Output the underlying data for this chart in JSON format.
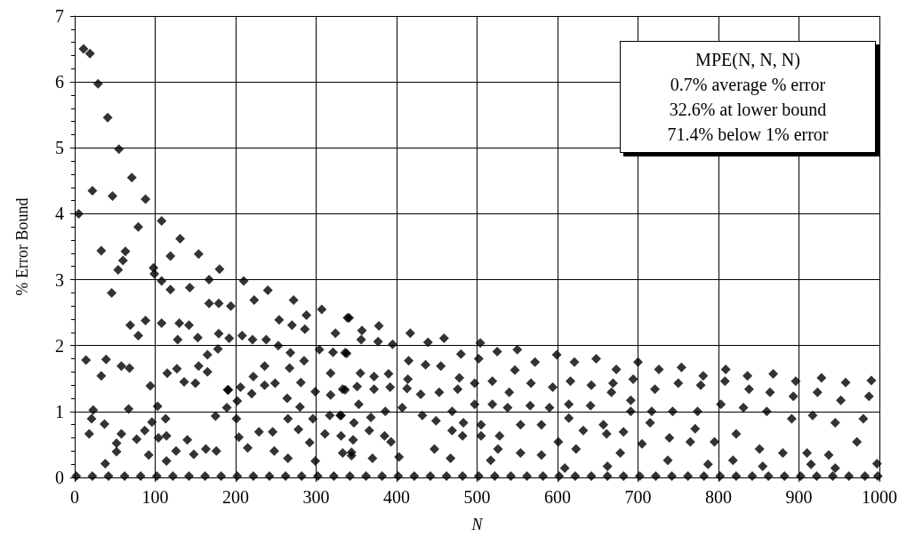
{
  "chart_data": {
    "type": "scatter",
    "xlabel": "N",
    "ylabel": "% Error Bound",
    "annotations": [
      "MPE(N, N, N)",
      "0.7% average % error",
      "32.6% at lower bound",
      "71.4% below 1% error"
    ],
    "x": [
      5,
      11,
      19,
      29,
      41,
      55,
      22,
      47,
      71,
      88,
      79,
      33,
      63,
      60,
      54,
      46,
      108,
      98,
      99,
      108,
      119,
      119,
      131,
      143,
      154,
      167,
      167,
      180,
      179,
      194,
      210,
      223,
      240,
      272,
      288,
      307,
      341,
      69,
      88,
      79,
      108,
      130,
      128,
      142,
      153,
      179,
      192,
      208,
      221,
      238,
      254,
      270,
      286,
      324,
      14,
      39,
      33,
      58,
      68,
      94,
      115,
      127,
      136,
      150,
      154,
      165,
      165,
      178,
      190,
      206,
      220,
      222,
      236,
      236,
      249,
      253,
      268,
      267,
      264,
      285,
      281,
      299,
      304,
      318,
      321,
      318,
      338,
      336,
      23,
      21,
      18,
      37,
      38,
      52,
      52,
      67,
      58,
      77,
      87,
      96,
      92,
      103,
      113,
      114,
      104,
      114,
      126,
      140,
      148,
      163,
      175,
      176,
      189,
      191,
      201,
      202,
      204,
      215,
      229,
      246,
      248,
      265,
      278,
      280,
      296,
      292,
      311,
      317,
      330,
      331,
      344,
      299,
      265,
      339,
      357,
      378,
      356,
      377,
      395,
      417,
      439,
      459,
      504,
      525,
      550,
      599,
      621,
      648,
      673,
      700,
      726,
      754,
      781,
      809,
      836,
      868,
      896,
      928,
      958,
      990,
      336,
      355,
      372,
      390,
      333,
      351,
      372,
      392,
      415,
      414,
      413,
      436,
      430,
      455,
      453,
      480,
      478,
      476,
      502,
      497,
      497,
      519,
      519,
      547,
      540,
      538,
      572,
      567,
      566,
      594,
      590,
      616,
      614,
      614,
      642,
      641,
      667,
      669,
      694,
      691,
      691,
      721,
      717,
      715,
      750,
      743,
      739,
      778,
      774,
      771,
      808,
      803,
      795,
      838,
      831,
      822,
      864,
      860,
      851,
      893,
      891,
      880,
      923,
      917,
      910,
      952,
      945,
      937,
      987,
      980,
      972,
      331,
      347,
      368,
      386,
      353,
      366,
      385,
      346,
      407,
      432,
      449,
      469,
      469,
      483,
      482,
      505,
      505,
      528,
      526,
      554,
      580,
      601,
      623,
      632,
      657,
      661,
      682,
      678,
      705,
      765,
      393,
      447,
      554,
      580,
      997,
      333,
      344,
      370,
      403,
      467,
      517,
      609,
      662,
      737,
      787,
      818,
      855,
      915,
      945,
      2,
      22,
      42,
      62,
      82,
      102,
      122,
      142,
      162,
      182,
      202,
      222,
      242,
      262,
      282,
      302,
      322,
      342,
      362,
      382,
      402,
      422,
      442,
      462,
      482,
      502,
      522,
      542,
      562,
      582,
      602,
      622,
      642,
      662,
      682,
      702,
      722,
      742,
      762,
      782,
      802,
      822,
      842,
      862,
      882,
      902,
      922,
      942,
      962,
      982,
      998
    ],
    "values": [
      4.0,
      6.5,
      6.43,
      5.97,
      5.46,
      4.98,
      4.35,
      4.27,
      4.55,
      4.22,
      3.8,
      3.44,
      3.43,
      3.29,
      3.15,
      2.8,
      3.89,
      3.18,
      3.09,
      2.98,
      3.36,
      2.85,
      3.62,
      2.88,
      3.39,
      3.0,
      2.64,
      3.16,
      2.64,
      2.6,
      2.98,
      2.69,
      2.84,
      2.69,
      2.46,
      2.55,
      2.42,
      2.31,
      2.38,
      2.15,
      2.34,
      2.34,
      2.09,
      2.31,
      2.12,
      2.18,
      2.11,
      2.15,
      2.09,
      2.09,
      2.39,
      2.31,
      2.25,
      2.19,
      1.78,
      1.79,
      1.54,
      1.69,
      1.66,
      1.39,
      1.58,
      1.65,
      1.45,
      1.43,
      1.69,
      1.6,
      1.86,
      1.95,
      1.33,
      1.37,
      1.27,
      1.53,
      1.69,
      1.4,
      1.43,
      2.0,
      1.89,
      1.66,
      1.2,
      1.77,
      1.44,
      1.3,
      1.94,
      1.58,
      1.9,
      1.25,
      1.88,
      1.33,
      1.02,
      0.89,
      0.66,
      0.81,
      0.21,
      0.52,
      0.39,
      1.04,
      0.66,
      0.58,
      0.71,
      0.84,
      0.34,
      1.08,
      0.89,
      0.63,
      0.6,
      0.25,
      0.4,
      0.57,
      0.35,
      0.43,
      0.93,
      0.4,
      1.06,
      1.33,
      0.89,
      1.16,
      0.61,
      0.45,
      0.69,
      0.69,
      0.4,
      0.89,
      0.73,
      1.07,
      0.89,
      0.53,
      0.66,
      0.94,
      0.94,
      0.63,
      0.38,
      0.25,
      0.29,
      2.42,
      2.23,
      2.3,
      2.09,
      2.06,
      2.02,
      2.19,
      2.05,
      2.11,
      2.04,
      1.91,
      1.94,
      1.86,
      1.75,
      1.8,
      1.64,
      1.75,
      1.64,
      1.67,
      1.54,
      1.64,
      1.54,
      1.57,
      1.46,
      1.51,
      1.44,
      1.47,
      1.89,
      1.58,
      1.53,
      1.57,
      1.34,
      1.38,
      1.34,
      1.37,
      1.77,
      1.49,
      1.35,
      1.71,
      1.26,
      1.69,
      1.29,
      1.87,
      1.51,
      1.34,
      1.8,
      1.43,
      1.11,
      1.46,
      1.11,
      1.63,
      1.29,
      1.06,
      1.75,
      1.43,
      1.09,
      1.37,
      1.06,
      1.46,
      1.11,
      0.9,
      1.4,
      1.09,
      1.29,
      1.43,
      1.49,
      1.17,
      1.0,
      1.34,
      1.0,
      0.83,
      1.43,
      1.0,
      0.6,
      1.4,
      1.0,
      0.74,
      1.46,
      1.11,
      0.54,
      1.34,
      1.06,
      0.66,
      1.29,
      1.0,
      0.43,
      1.23,
      0.89,
      0.37,
      1.29,
      0.94,
      0.37,
      1.17,
      0.83,
      0.34,
      1.23,
      0.89,
      0.54,
      0.94,
      0.83,
      0.91,
      1.0,
      1.11,
      0.71,
      0.63,
      0.57,
      1.06,
      0.94,
      0.86,
      1.0,
      0.71,
      0.83,
      0.63,
      0.8,
      0.63,
      0.63,
      0.43,
      0.8,
      0.8,
      0.54,
      0.43,
      0.71,
      0.8,
      0.66,
      0.69,
      0.37,
      0.51,
      0.54,
      0.54,
      0.43,
      0.37,
      0.34,
      0.21,
      0.37,
      0.33,
      0.29,
      0.31,
      0.29,
      0.26,
      0.14,
      0.17,
      0.26,
      0.2,
      0.26,
      0.17,
      0.2,
      0.14,
      0.02,
      0.02,
      0.02,
      0.02,
      0.02,
      0.02,
      0.02,
      0.02,
      0.02,
      0.02,
      0.02,
      0.02,
      0.02,
      0.02,
      0.02,
      0.02,
      0.02,
      0.02,
      0.02,
      0.02,
      0.02,
      0.02,
      0.02,
      0.02,
      0.02,
      0.02,
      0.02,
      0.02,
      0.02,
      0.02,
      0.02,
      0.02,
      0.02,
      0.02,
      0.02,
      0.02,
      0.02,
      0.02,
      0.02,
      0.02,
      0.02,
      0.02,
      0.02,
      0.02,
      0.02,
      0.02,
      0.02,
      0.02,
      0.02,
      0.02,
      0.02
    ],
    "color": "#000000",
    "marker": "diamond",
    "xlim": [
      0,
      1000
    ],
    "xticks": [
      0,
      100,
      200,
      300,
      400,
      500,
      600,
      700,
      800,
      900,
      1000
    ],
    "ylim": [
      0,
      7
    ],
    "yticks": [
      0,
      1,
      2,
      3,
      4,
      5,
      6,
      7
    ],
    "grid": true
  }
}
